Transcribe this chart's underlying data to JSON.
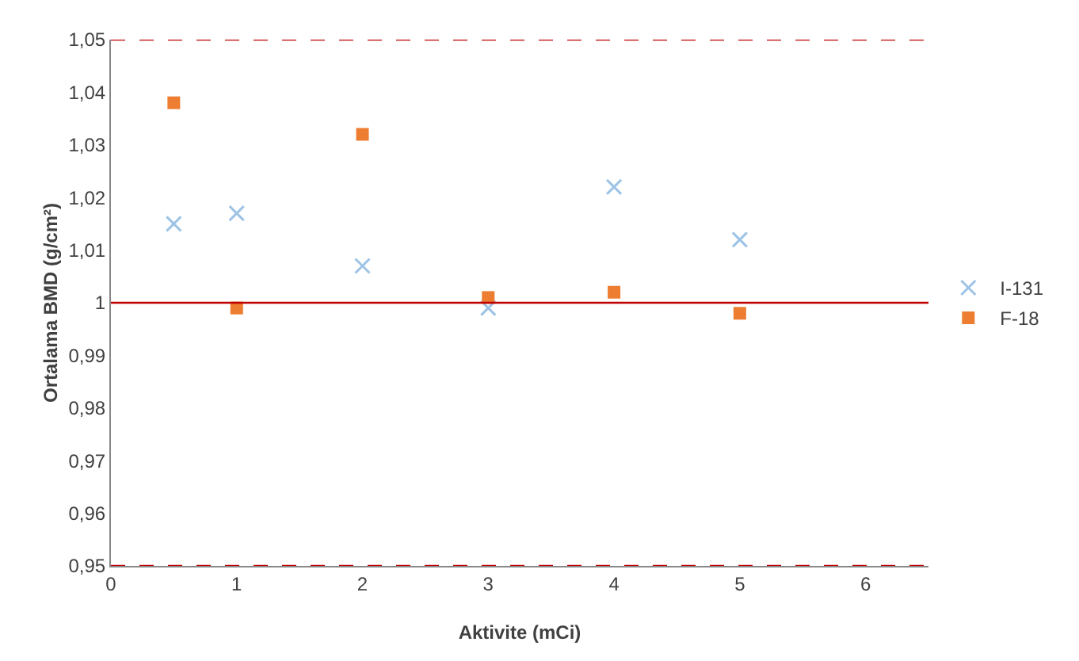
{
  "chart_data": {
    "type": "scatter",
    "xlabel": "Aktivite (mCi)",
    "ylabel": "Ortalama BMD (g/cm²)",
    "x": [
      0.5,
      1,
      2,
      3,
      4,
      5
    ],
    "series": [
      {
        "name": "I-131",
        "color": "#9dc3e6",
        "marker": "cross",
        "values": [
          1.015,
          1.017,
          1.007,
          0.999,
          1.022,
          1.012
        ]
      },
      {
        "name": "F-18",
        "color": "#ed7d31",
        "marker": "square",
        "values": [
          1.038,
          0.999,
          1.032,
          1.001,
          1.002,
          0.998
        ]
      }
    ],
    "xlim": [
      0,
      6.5
    ],
    "xticks": [
      0,
      1,
      2,
      3,
      4,
      5,
      6
    ],
    "ylim": [
      0.95,
      1.05
    ],
    "yticks": [
      {
        "value": 0.95,
        "label": "0,95"
      },
      {
        "value": 0.96,
        "label": "0,96"
      },
      {
        "value": 0.97,
        "label": "0,97"
      },
      {
        "value": 0.98,
        "label": "0,98"
      },
      {
        "value": 0.99,
        "label": "0,99"
      },
      {
        "value": 1,
        "label": "1"
      },
      {
        "value": 1.01,
        "label": "1,01"
      },
      {
        "value": 1.02,
        "label": "1,02"
      },
      {
        "value": 1.03,
        "label": "1,03"
      },
      {
        "value": 1.04,
        "label": "1,04"
      },
      {
        "value": 1.05,
        "label": "1,05"
      }
    ],
    "ref_lines": [
      {
        "axis": "y",
        "value": 1,
        "color": "#c00000",
        "line_style": "solid"
      },
      {
        "axis": "y",
        "value": 1.05,
        "color": "#c00000",
        "line_style": "dashed"
      },
      {
        "axis": "y",
        "value": 0.95,
        "color": "#c00000",
        "line_style": "dashed"
      }
    ],
    "grid": false,
    "legend": "right"
  }
}
